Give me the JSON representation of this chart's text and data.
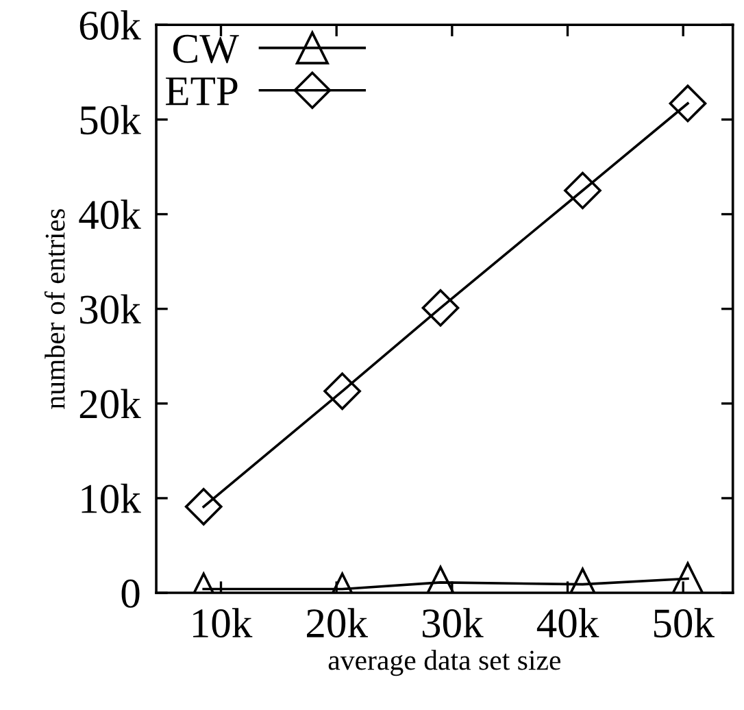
{
  "chart_data": {
    "type": "line",
    "xlabel": "average data set size",
    "ylabel": "number of entries",
    "x": [
      8500,
      20500,
      29000,
      41300,
      50400
    ],
    "series": [
      {
        "name": "CW",
        "color": "#000000",
        "marker": "triangle",
        "values": [
          400,
          400,
          1100,
          900,
          1500
        ]
      },
      {
        "name": "ETP",
        "color": "#000000",
        "marker": "diamond",
        "values": [
          9100,
          21300,
          30100,
          42500,
          51700
        ]
      }
    ],
    "xlim": [
      4400,
      54300
    ],
    "xticks": [
      {
        "value": 10000,
        "label": "10k"
      },
      {
        "value": 20000,
        "label": "20k"
      },
      {
        "value": 30000,
        "label": "30k"
      },
      {
        "value": 40000,
        "label": "40k"
      },
      {
        "value": 50000,
        "label": "50k"
      }
    ],
    "ylim": [
      0,
      60000
    ],
    "yticks": [
      {
        "value": 0,
        "label": "0"
      },
      {
        "value": 10000,
        "label": "10k"
      },
      {
        "value": 20000,
        "label": "20k"
      },
      {
        "value": 30000,
        "label": "30k"
      },
      {
        "value": 40000,
        "label": "40k"
      },
      {
        "value": 50000,
        "label": "50k"
      },
      {
        "value": 60000,
        "label": "60k"
      }
    ],
    "legend": "top left",
    "grid": false,
    "line_style": "solid"
  }
}
